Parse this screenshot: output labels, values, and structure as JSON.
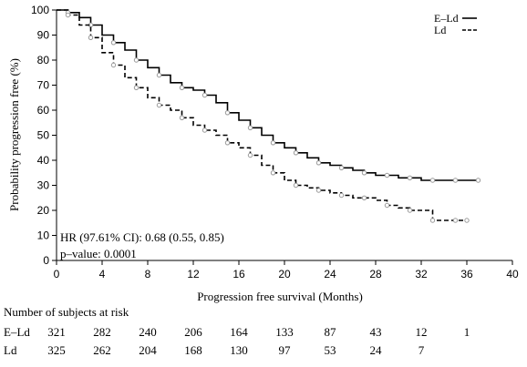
{
  "chart_data": {
    "type": "line",
    "subtype": "kaplan-meier",
    "xlabel": "Progression free survival (Months)",
    "ylabel": "Probability progression free (%)",
    "xlim": [
      0,
      40
    ],
    "ylim": [
      0,
      100
    ],
    "xticks": [
      0,
      4,
      8,
      12,
      16,
      20,
      24,
      28,
      32,
      36,
      40
    ],
    "yticks": [
      0,
      10,
      20,
      30,
      40,
      50,
      60,
      70,
      80,
      90,
      100
    ],
    "grid": false,
    "legend_position": "top-right",
    "series": [
      {
        "name": "E–Ld",
        "line_style": "solid",
        "color": "#000000",
        "points": [
          [
            0,
            100
          ],
          [
            1,
            99
          ],
          [
            2,
            97
          ],
          [
            3,
            94
          ],
          [
            4,
            90
          ],
          [
            5,
            87
          ],
          [
            6,
            84
          ],
          [
            7,
            80
          ],
          [
            8,
            77
          ],
          [
            9,
            74
          ],
          [
            10,
            71
          ],
          [
            11,
            69
          ],
          [
            12,
            68
          ],
          [
            13,
            66
          ],
          [
            14,
            63
          ],
          [
            15,
            59
          ],
          [
            16,
            56
          ],
          [
            17,
            53
          ],
          [
            18,
            50
          ],
          [
            19,
            47
          ],
          [
            20,
            45
          ],
          [
            21,
            43
          ],
          [
            22,
            41
          ],
          [
            23,
            39
          ],
          [
            24,
            38
          ],
          [
            25,
            37
          ],
          [
            26,
            36
          ],
          [
            27,
            35
          ],
          [
            28,
            34
          ],
          [
            29,
            34
          ],
          [
            30,
            33
          ],
          [
            31,
            33
          ],
          [
            32,
            32
          ],
          [
            33,
            32
          ],
          [
            34,
            32
          ],
          [
            35,
            32
          ],
          [
            36,
            32
          ],
          [
            37,
            32
          ]
        ]
      },
      {
        "name": "Ld",
        "line_style": "dashed",
        "color": "#000000",
        "points": [
          [
            0,
            100
          ],
          [
            1,
            98
          ],
          [
            2,
            94
          ],
          [
            3,
            89
          ],
          [
            4,
            83
          ],
          [
            5,
            78
          ],
          [
            6,
            73
          ],
          [
            7,
            69
          ],
          [
            8,
            65
          ],
          [
            9,
            62
          ],
          [
            10,
            60
          ],
          [
            11,
            57
          ],
          [
            12,
            54
          ],
          [
            13,
            52
          ],
          [
            14,
            50
          ],
          [
            15,
            47
          ],
          [
            16,
            45
          ],
          [
            17,
            42
          ],
          [
            18,
            38
          ],
          [
            19,
            35
          ],
          [
            20,
            32
          ],
          [
            21,
            30
          ],
          [
            22,
            29
          ],
          [
            23,
            28
          ],
          [
            24,
            27
          ],
          [
            25,
            26
          ],
          [
            26,
            25
          ],
          [
            27,
            25
          ],
          [
            28,
            24
          ],
          [
            29,
            22
          ],
          [
            30,
            21
          ],
          [
            31,
            20
          ],
          [
            32,
            20
          ],
          [
            33,
            16
          ],
          [
            34,
            16
          ],
          [
            35,
            16
          ],
          [
            36,
            16
          ]
        ]
      }
    ],
    "annotations": [
      "HR (97.61% CI): 0.68 (0.55, 0.85)",
      "p–value: 0.0001"
    ]
  },
  "risk_table": {
    "title": "Number of subjects at risk",
    "rows": [
      {
        "label": "E–Ld",
        "values": [
          "321",
          "282",
          "240",
          "206",
          "164",
          "133",
          "87",
          "43",
          "12",
          "1"
        ]
      },
      {
        "label": "Ld",
        "values": [
          "325",
          "262",
          "204",
          "168",
          "130",
          "97",
          "53",
          "24",
          "7",
          ""
        ]
      }
    ]
  }
}
